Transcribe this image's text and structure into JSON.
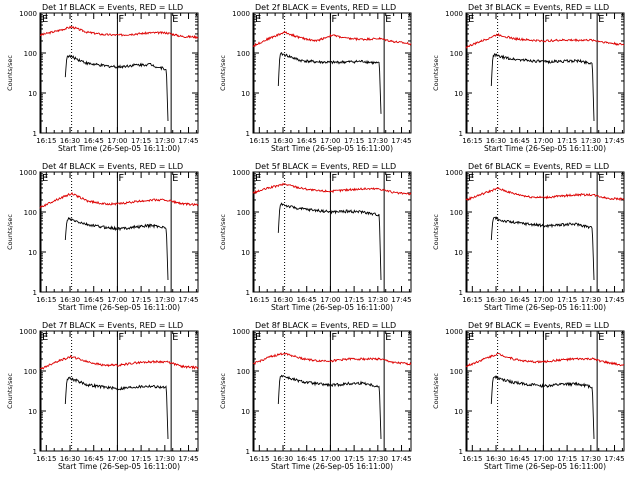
{
  "figure": {
    "background": "#ffffff",
    "axis_color": "#000000",
    "lld_color": "#dd0000",
    "events_color": "#000000"
  },
  "chart_data": [
    {
      "type": "line",
      "title": "Det 1f BLACK = Events, RED = LLD",
      "ylabel": "Counts/sec",
      "xlabel": "Start Time (26-Sep-05 16:11:00)",
      "x_tick_labels": [
        "16:15",
        "16:30",
        "16:45",
        "17:00",
        "17:15",
        "17:30",
        "17:45"
      ],
      "y_tick_labels": [
        "1",
        "10",
        "100",
        "1000"
      ],
      "ylim": [
        1,
        1000
      ],
      "xlim_minutes": [
        0,
        100
      ],
      "event_markers": [
        {
          "label": "E",
          "t": 0
        },
        {
          "label": "F",
          "t": 49
        },
        {
          "label": "E",
          "t": 83
        }
      ],
      "dotted_line_t": 20,
      "series": [
        {
          "name": "LLD",
          "color": "#dd0000",
          "t": [
            0,
            10,
            20,
            30,
            40,
            50,
            60,
            70,
            80,
            90,
            100
          ],
          "values": [
            280,
            350,
            450,
            330,
            290,
            280,
            300,
            320,
            320,
            260,
            250
          ]
        },
        {
          "name": "Events",
          "color": "#000000",
          "t": [
            16,
            17,
            18,
            22,
            30,
            40,
            50,
            60,
            70,
            75,
            80,
            81
          ],
          "values": [
            25,
            80,
            85,
            75,
            55,
            48,
            45,
            50,
            52,
            44,
            40,
            2
          ]
        }
      ]
    },
    {
      "type": "line",
      "title": "Det 2f BLACK = Events, RED = LLD",
      "ylabel": "Counts/sec",
      "xlabel": "Start Time (26-Sep-05 16:11:00)",
      "x_tick_labels": [
        "16:15",
        "16:30",
        "16:45",
        "17:00",
        "17:15",
        "17:30",
        "17:45"
      ],
      "y_tick_labels": [
        "1",
        "10",
        "100",
        "1000"
      ],
      "ylim": [
        1,
        1000
      ],
      "xlim_minutes": [
        0,
        100
      ],
      "event_markers": [
        {
          "label": "E",
          "t": 0
        },
        {
          "label": "F",
          "t": 49
        },
        {
          "label": "E",
          "t": 83
        }
      ],
      "dotted_line_t": 20,
      "series": [
        {
          "name": "LLD",
          "color": "#dd0000",
          "t": [
            0,
            10,
            20,
            30,
            40,
            50,
            60,
            70,
            80,
            90,
            100
          ],
          "values": [
            150,
            230,
            330,
            240,
            200,
            280,
            230,
            220,
            230,
            190,
            170
          ]
        },
        {
          "name": "Events",
          "color": "#000000",
          "t": [
            16,
            17,
            18,
            22,
            30,
            40,
            50,
            60,
            70,
            75,
            80,
            81
          ],
          "values": [
            15,
            90,
            95,
            85,
            65,
            60,
            58,
            60,
            62,
            58,
            55,
            3
          ]
        }
      ]
    },
    {
      "type": "line",
      "title": "Det 3f BLACK = Events, RED = LLD",
      "ylabel": "Counts/sec",
      "xlabel": "Start Time (26-Sep-05 16:11:00)",
      "x_tick_labels": [
        "16:15",
        "16:30",
        "16:45",
        "17:00",
        "17:15",
        "17:30",
        "17:45"
      ],
      "y_tick_labels": [
        "1",
        "10",
        "100",
        "1000"
      ],
      "ylim": [
        1,
        1000
      ],
      "xlim_minutes": [
        0,
        100
      ],
      "event_markers": [
        {
          "label": "E",
          "t": 0
        },
        {
          "label": "F",
          "t": 49
        },
        {
          "label": "E",
          "t": 83
        }
      ],
      "dotted_line_t": 20,
      "series": [
        {
          "name": "LLD",
          "color": "#dd0000",
          "t": [
            0,
            10,
            20,
            30,
            40,
            50,
            60,
            70,
            80,
            90,
            100
          ],
          "values": [
            140,
            200,
            290,
            230,
            210,
            200,
            210,
            210,
            210,
            180,
            160
          ]
        },
        {
          "name": "Events",
          "color": "#000000",
          "t": [
            16,
            17,
            18,
            22,
            30,
            40,
            50,
            60,
            70,
            75,
            80,
            81
          ],
          "values": [
            15,
            85,
            90,
            80,
            70,
            65,
            60,
            62,
            64,
            60,
            55,
            2
          ]
        }
      ]
    },
    {
      "type": "line",
      "title": "Det 4f BLACK = Events, RED = LLD",
      "ylabel": "Counts/sec",
      "xlabel": "Start Time (26-Sep-05 16:11:00)",
      "x_tick_labels": [
        "16:15",
        "16:30",
        "16:45",
        "17:00",
        "17:15",
        "17:30",
        "17:45"
      ],
      "y_tick_labels": [
        "1",
        "10",
        "100",
        "1000"
      ],
      "ylim": [
        1,
        1000
      ],
      "xlim_minutes": [
        0,
        100
      ],
      "event_markers": [
        {
          "label": "E",
          "t": 0
        },
        {
          "label": "F",
          "t": 49
        },
        {
          "label": "E",
          "t": 83
        }
      ],
      "dotted_line_t": 20,
      "series": [
        {
          "name": "LLD",
          "color": "#dd0000",
          "t": [
            0,
            10,
            20,
            30,
            40,
            50,
            60,
            70,
            80,
            90,
            100
          ],
          "values": [
            130,
            200,
            290,
            190,
            160,
            160,
            180,
            200,
            200,
            160,
            150
          ]
        },
        {
          "name": "Events",
          "color": "#000000",
          "t": [
            16,
            17,
            18,
            22,
            30,
            40,
            50,
            60,
            70,
            75,
            80,
            81
          ],
          "values": [
            20,
            60,
            68,
            60,
            48,
            42,
            38,
            42,
            46,
            44,
            40,
            2
          ]
        }
      ]
    },
    {
      "type": "line",
      "title": "Det 5f BLACK = Events, RED = LLD",
      "ylabel": "Counts/sec",
      "xlabel": "Start Time (26-Sep-05 16:11:00)",
      "x_tick_labels": [
        "16:15",
        "16:30",
        "16:45",
        "17:00",
        "17:15",
        "17:30",
        "17:45"
      ],
      "y_tick_labels": [
        "1",
        "10",
        "100",
        "1000"
      ],
      "ylim": [
        1,
        1000
      ],
      "xlim_minutes": [
        0,
        100
      ],
      "event_markers": [
        {
          "label": "E",
          "t": 0
        },
        {
          "label": "F",
          "t": 49
        },
        {
          "label": "E",
          "t": 83
        }
      ],
      "dotted_line_t": 20,
      "series": [
        {
          "name": "LLD",
          "color": "#dd0000",
          "t": [
            0,
            10,
            20,
            30,
            40,
            50,
            60,
            70,
            80,
            90,
            100
          ],
          "values": [
            300,
            400,
            500,
            400,
            340,
            330,
            360,
            380,
            380,
            300,
            280
          ]
        },
        {
          "name": "Events",
          "color": "#000000",
          "t": [
            16,
            17,
            18,
            22,
            30,
            40,
            50,
            60,
            70,
            75,
            80,
            81
          ],
          "values": [
            30,
            140,
            160,
            140,
            120,
            110,
            100,
            105,
            100,
            90,
            85,
            2
          ]
        }
      ]
    },
    {
      "type": "line",
      "title": "Det 6f BLACK = Events, RED = LLD",
      "ylabel": "Counts/sec",
      "xlabel": "Start Time (26-Sep-05 16:11:00)",
      "x_tick_labels": [
        "16:15",
        "16:30",
        "16:45",
        "17:00",
        "17:15",
        "17:30",
        "17:45"
      ],
      "y_tick_labels": [
        "1",
        "10",
        "100",
        "1000"
      ],
      "ylim": [
        1,
        1000
      ],
      "xlim_minutes": [
        0,
        100
      ],
      "event_markers": [
        {
          "label": "E",
          "t": 0
        },
        {
          "label": "F",
          "t": 49
        },
        {
          "label": "E",
          "t": 83
        }
      ],
      "dotted_line_t": 20,
      "series": [
        {
          "name": "LLD",
          "color": "#dd0000",
          "t": [
            0,
            10,
            20,
            30,
            40,
            50,
            60,
            70,
            80,
            90,
            100
          ],
          "values": [
            200,
            280,
            390,
            290,
            240,
            230,
            250,
            270,
            270,
            220,
            210
          ]
        },
        {
          "name": "Events",
          "color": "#000000",
          "t": [
            16,
            17,
            18,
            22,
            30,
            40,
            50,
            60,
            70,
            75,
            80,
            81
          ],
          "values": [
            20,
            65,
            72,
            62,
            55,
            50,
            45,
            48,
            50,
            45,
            40,
            2
          ]
        }
      ]
    },
    {
      "type": "line",
      "title": "Det 7f BLACK = Events, RED = LLD",
      "ylabel": "Counts/sec",
      "xlabel": "Start Time (26-Sep-05 16:11:00)",
      "x_tick_labels": [
        "16:15",
        "16:30",
        "16:45",
        "17:00",
        "17:15",
        "17:30",
        "17:45"
      ],
      "y_tick_labels": [
        "1",
        "10",
        "100",
        "1000"
      ],
      "ylim": [
        1,
        1000
      ],
      "xlim_minutes": [
        0,
        100
      ],
      "event_markers": [
        {
          "label": "E",
          "t": 0
        },
        {
          "label": "F",
          "t": 49
        },
        {
          "label": "E",
          "t": 83
        }
      ],
      "dotted_line_t": 20,
      "series": [
        {
          "name": "LLD",
          "color": "#dd0000",
          "t": [
            0,
            10,
            20,
            30,
            40,
            50,
            60,
            70,
            80,
            90,
            100
          ],
          "values": [
            110,
            170,
            230,
            170,
            140,
            140,
            160,
            170,
            170,
            130,
            120
          ]
        },
        {
          "name": "Events",
          "color": "#000000",
          "t": [
            16,
            17,
            18,
            22,
            30,
            40,
            50,
            60,
            70,
            75,
            80,
            81
          ],
          "values": [
            15,
            60,
            68,
            60,
            45,
            40,
            36,
            40,
            42,
            40,
            38,
            2
          ]
        }
      ]
    },
    {
      "type": "line",
      "title": "Det 8f BLACK = Events, RED = LLD",
      "ylabel": "Counts/sec",
      "xlabel": "Start Time (26-Sep-05 16:11:00)",
      "x_tick_labels": [
        "16:15",
        "16:30",
        "16:45",
        "17:00",
        "17:15",
        "17:30",
        "17:45"
      ],
      "y_tick_labels": [
        "1",
        "10",
        "100",
        "1000"
      ],
      "ylim": [
        1,
        1000
      ],
      "xlim_minutes": [
        0,
        100
      ],
      "event_markers": [
        {
          "label": "E",
          "t": 0
        },
        {
          "label": "F",
          "t": 49
        },
        {
          "label": "E",
          "t": 83
        }
      ],
      "dotted_line_t": 20,
      "series": [
        {
          "name": "LLD",
          "color": "#dd0000",
          "t": [
            0,
            10,
            20,
            30,
            40,
            50,
            60,
            70,
            80,
            90,
            100
          ],
          "values": [
            150,
            220,
            280,
            210,
            180,
            180,
            200,
            200,
            200,
            160,
            150
          ]
        },
        {
          "name": "Events",
          "color": "#000000",
          "t": [
            16,
            17,
            18,
            22,
            30,
            40,
            50,
            60,
            70,
            75,
            80,
            81
          ],
          "values": [
            15,
            70,
            78,
            68,
            55,
            48,
            44,
            48,
            50,
            45,
            40,
            2
          ]
        }
      ]
    },
    {
      "type": "line",
      "title": "Det 9f BLACK = Events, RED = LLD",
      "ylabel": "Counts/sec",
      "xlabel": "Start Time (26-Sep-05 16:11:00)",
      "x_tick_labels": [
        "16:15",
        "16:30",
        "16:45",
        "17:00",
        "17:15",
        "17:30",
        "17:45"
      ],
      "y_tick_labels": [
        "1",
        "10",
        "100",
        "1000"
      ],
      "ylim": [
        1,
        1000
      ],
      "xlim_minutes": [
        0,
        100
      ],
      "event_markers": [
        {
          "label": "E",
          "t": 0
        },
        {
          "label": "F",
          "t": 49
        },
        {
          "label": "E",
          "t": 83
        }
      ],
      "dotted_line_t": 20,
      "series": [
        {
          "name": "LLD",
          "color": "#dd0000",
          "t": [
            0,
            10,
            20,
            30,
            40,
            50,
            60,
            70,
            80,
            90,
            100
          ],
          "values": [
            130,
            190,
            270,
            200,
            170,
            170,
            190,
            200,
            200,
            160,
            140
          ]
        },
        {
          "name": "Events",
          "color": "#000000",
          "t": [
            16,
            17,
            18,
            22,
            30,
            40,
            50,
            60,
            70,
            75,
            80,
            81
          ],
          "values": [
            15,
            65,
            72,
            62,
            52,
            46,
            42,
            46,
            48,
            44,
            40,
            2
          ]
        }
      ]
    }
  ]
}
